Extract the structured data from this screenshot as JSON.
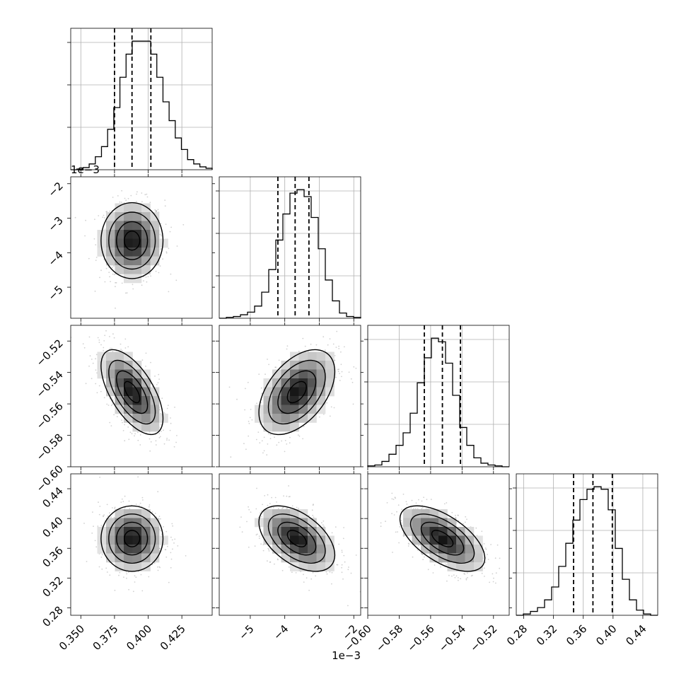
{
  "chart_data": {
    "type": "corner",
    "title": "",
    "parameters": [
      {
        "label": "",
        "range": [
          0.3425,
          0.4475
        ],
        "ticks": [
          0.35,
          0.375,
          0.4,
          0.425
        ],
        "tick_labels": [
          "0.350",
          "0.375",
          "0.400",
          "0.425"
        ],
        "quantiles": [
          0.375,
          0.388,
          0.402
        ],
        "hist": [
          0,
          0.5,
          1.5,
          4,
          9,
          16,
          28,
          43,
          64,
          80,
          89,
          89,
          89,
          80,
          64,
          47,
          34,
          22,
          14,
          7,
          4,
          2,
          1
        ]
      },
      {
        "label": "",
        "exponent_label": "1e−3",
        "range": [
          -5.9,
          -1.8
        ],
        "ticks": [
          -5,
          -4,
          -3,
          -2
        ],
        "tick_labels": [
          "−5",
          "−4",
          "−3",
          "−2"
        ],
        "quantiles": [
          -4.2,
          -3.7,
          -3.3
        ],
        "hist": [
          0,
          0.5,
          1,
          2,
          3.5,
          7,
          15,
          28,
          45,
          60,
          72,
          74,
          70,
          58,
          40,
          22,
          10,
          3,
          1,
          0.5
        ]
      },
      {
        "label": "",
        "range": [
          -0.6,
          -0.51
        ],
        "ticks": [
          -0.6,
          -0.58,
          -0.56,
          -0.54,
          -0.52
        ],
        "tick_labels": [
          "−0.60",
          "−0.58",
          "−0.56",
          "−0.54",
          "−0.52"
        ],
        "quantiles": [
          -0.564,
          -0.5525,
          -0.541
        ],
        "hist": [
          0.5,
          1,
          3,
          7,
          12,
          19,
          30,
          47,
          61,
          72,
          70,
          58,
          40,
          22,
          12,
          5,
          2,
          1,
          0.5,
          0
        ]
      },
      {
        "label": "",
        "range": [
          0.27,
          0.46
        ],
        "ticks": [
          0.28,
          0.32,
          0.36,
          0.4,
          0.44
        ],
        "tick_labels": [
          "0.28",
          "0.32",
          "0.36",
          "0.40",
          "0.44"
        ],
        "quantiles": [
          0.347,
          0.373,
          0.399
        ],
        "hist": [
          0,
          0.5,
          1.5,
          3,
          6,
          11,
          19,
          28,
          37,
          45,
          49,
          50,
          49,
          41,
          26,
          14,
          6,
          2,
          0.5,
          0
        ]
      }
    ],
    "pairs": [
      {
        "x": 0,
        "y": 1,
        "center": [
          0.388,
          -3.65
        ],
        "sd": [
          0.0115,
          0.55
        ],
        "corr": 0.0
      },
      {
        "x": 0,
        "y": 2,
        "center": [
          0.388,
          -0.5525
        ],
        "sd": [
          0.0115,
          0.0135
        ],
        "corr": -0.62
      },
      {
        "x": 1,
        "y": 2,
        "center": [
          -3.65,
          -0.5525
        ],
        "sd": [
          0.55,
          0.0135
        ],
        "corr": 0.48
      },
      {
        "x": 0,
        "y": 3,
        "center": [
          0.388,
          0.373
        ],
        "sd": [
          0.0115,
          0.022
        ],
        "corr": 0.0
      },
      {
        "x": 1,
        "y": 3,
        "center": [
          -3.65,
          0.373
        ],
        "sd": [
          0.55,
          0.022
        ],
        "corr": -0.5
      },
      {
        "x": 2,
        "y": 3,
        "center": [
          -0.5525,
          0.373
        ],
        "sd": [
          0.0135,
          0.022
        ],
        "corr": -0.6
      }
    ],
    "grid": true,
    "legend": "none"
  }
}
